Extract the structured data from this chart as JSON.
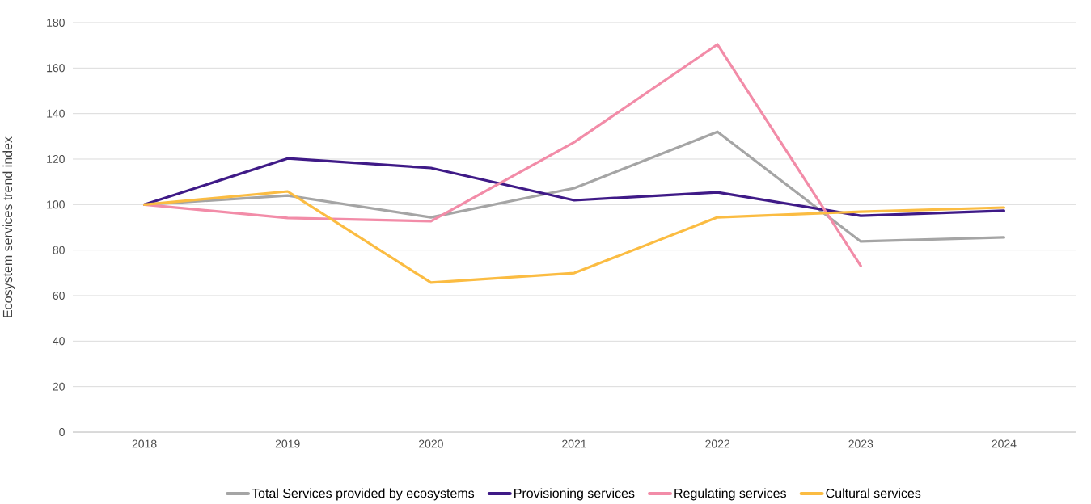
{
  "chart_data": {
    "type": "line",
    "ylabel": "Ecosystem services trend index",
    "categories": [
      "2018",
      "2019",
      "2020",
      "2021",
      "2022",
      "2023",
      "2024"
    ],
    "series": [
      {
        "name": "Total Services provided by ecosystems",
        "color": "#a5a5a5",
        "values": [
          100,
          104,
          94.4,
          107.2,
          132,
          83.8,
          85.6
        ]
      },
      {
        "name": "Provisioning services",
        "color": "#3f1a87",
        "values": [
          100,
          120.3,
          116.1,
          101.9,
          105.4,
          95.1,
          97.3
        ]
      },
      {
        "name": "Regulating services",
        "color": "#f28ca8",
        "values": [
          100,
          94.1,
          92.7,
          127.4,
          170.4,
          73.1,
          null
        ]
      },
      {
        "name": "Cultural services",
        "color": "#fbbc42",
        "values": [
          100,
          105.8,
          65.7,
          69.9,
          94.4,
          96.9,
          98.7
        ]
      }
    ],
    "ylim": [
      0,
      180
    ],
    "yticks": [
      0,
      20,
      40,
      60,
      80,
      100,
      120,
      140,
      160,
      180
    ],
    "grid": "y",
    "legend": "bottom",
    "marker": "none",
    "line_style": "solid"
  }
}
